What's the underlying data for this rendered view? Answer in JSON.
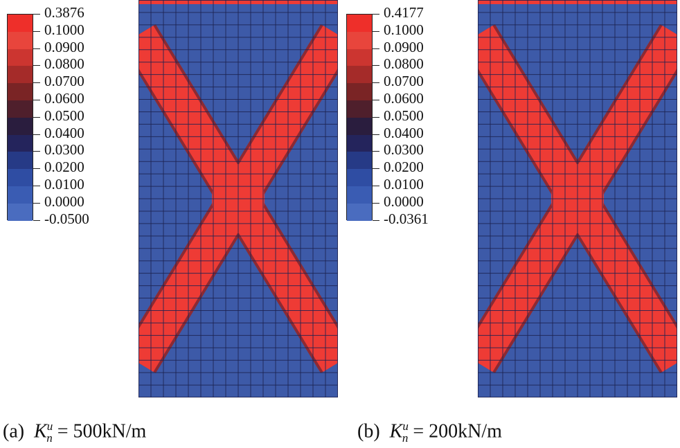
{
  "colors": {
    "background": "#3d5aa8",
    "band": "#ee3b35",
    "grid": "#1c2250",
    "legend_segments": [
      "#ee2f2a",
      "#e8453c",
      "#cc3530",
      "#a52b29",
      "#7a2425",
      "#4f1f2c",
      "#2a1d3e",
      "#24245c",
      "#263a86",
      "#2f4da3",
      "#3a5cb3",
      "#4a6cbf"
    ]
  },
  "panels": [
    {
      "id": "a",
      "legend_labels": [
        "0.3876",
        "0.1000",
        "0.0900",
        "0.0800",
        "0.0700",
        "0.0600",
        "0.0500",
        "0.0400",
        "0.0300",
        "0.0200",
        "0.0100",
        "0.0000",
        "-0.0500"
      ],
      "caption_prefix": "(a)",
      "caption_k": "K",
      "caption_sup": "u",
      "caption_sub": "n",
      "caption_rest": "= 500kN/m"
    },
    {
      "id": "b",
      "legend_labels": [
        "0.4177",
        "0.1000",
        "0.0900",
        "0.0800",
        "0.0700",
        "0.0600",
        "0.0500",
        "0.0400",
        "0.0300",
        "0.0200",
        "0.0100",
        "0.0000",
        "-0.0361"
      ],
      "caption_prefix": "(b)",
      "caption_k": "K",
      "caption_sup": "u",
      "caption_sub": "n",
      "caption_rest": "= 200kN/m"
    }
  ]
}
